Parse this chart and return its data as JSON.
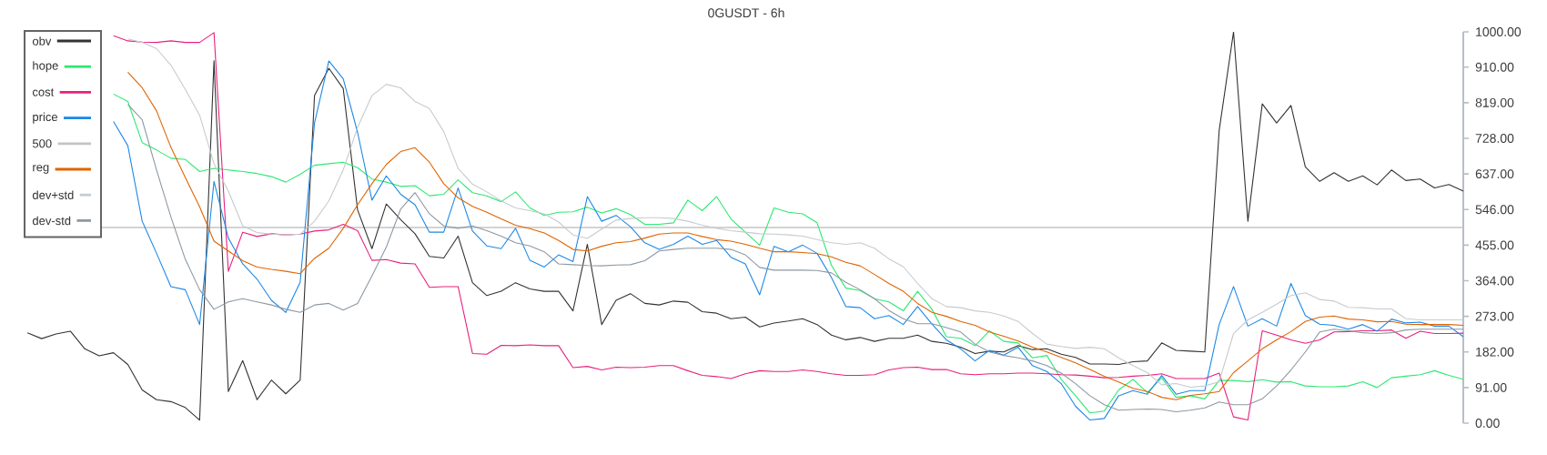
{
  "chart_data": {
    "type": "line",
    "title": "0GUSDT - 6h",
    "categories": [
      null,
      null,
      null,
      null,
      null,
      null,
      null,
      null,
      null,
      null,
      null,
      null,
      null,
      null,
      null,
      null,
      null,
      null,
      null,
      null,
      null,
      null,
      null,
      null,
      null,
      null,
      null,
      null,
      null,
      null,
      null,
      null,
      null,
      null,
      null,
      null,
      null,
      null,
      null,
      null,
      null,
      null,
      null,
      null,
      null,
      null,
      null,
      null,
      null,
      null,
      null,
      null,
      null,
      null,
      null,
      null,
      null,
      null,
      null,
      null,
      null,
      null,
      null,
      null,
      null,
      null,
      null,
      null,
      null,
      null,
      null,
      null,
      null,
      null,
      null,
      null,
      null,
      null,
      null,
      null,
      null,
      null,
      null,
      null,
      null,
      null,
      null,
      null,
      null,
      null,
      null,
      null,
      null,
      null,
      null,
      null,
      null,
      null,
      null,
      null,
      null
    ],
    "series": [
      {
        "name": "obv",
        "color": "#333333",
        "values": [
          231,
          216,
          228,
          235,
          190,
          172,
          180,
          150,
          85,
          60,
          55,
          40,
          8,
          926,
          81,
          160,
          60,
          110,
          75,
          110,
          837,
          907,
          855,
          545,
          446,
          560,
          520,
          484,
          426,
          422,
          478,
          359,
          326,
          337,
          359,
          343,
          337,
          337,
          287,
          457,
          252,
          314,
          331,
          306,
          302,
          312,
          309,
          285,
          281,
          267,
          271,
          246,
          256,
          261,
          267,
          252,
          225,
          213,
          219,
          209,
          217,
          217,
          225,
          209,
          204,
          194,
          178,
          184,
          182,
          198,
          188,
          190,
          176,
          168,
          151,
          151,
          150,
          157,
          159,
          205,
          186,
          184,
          182,
          748,
          1000,
          516,
          816,
          767,
          812,
          655,
          618,
          640,
          618,
          632,
          609,
          647,
          620,
          624,
          601,
          610,
          593
        ]
      },
      {
        "name": "hope",
        "color": "#2ee872",
        "values": [
          null,
          null,
          null,
          null,
          null,
          null,
          841,
          822,
          717,
          698,
          677,
          674,
          643,
          651,
          647,
          643,
          638,
          630,
          616,
          636,
          659,
          663,
          667,
          653,
          624,
          616,
          605,
          607,
          581,
          585,
          622,
          589,
          581,
          566,
          591,
          550,
          531,
          539,
          540,
          552,
          537,
          548,
          533,
          508,
          508,
          512,
          570,
          543,
          579,
          522,
          488,
          455,
          550,
          539,
          535,
          512,
          403,
          345,
          339,
          318,
          310,
          287,
          337,
          291,
          221,
          217,
          198,
          236,
          209,
          205,
          167,
          173,
          112,
          70,
          26,
          31,
          85,
          112,
          78,
          116,
          66,
          70,
          62,
          109,
          109,
          106,
          111,
          105,
          106,
          95,
          93,
          93,
          95,
          106,
          91,
          116,
          120,
          124,
          134,
          122,
          112
        ]
      },
      {
        "name": "cost",
        "color": "#e8207e",
        "values": [
          null,
          null,
          null,
          null,
          null,
          null,
          990,
          977,
          974,
          973,
          977,
          973,
          973,
          998,
          388,
          488,
          477,
          484,
          481,
          483,
          491,
          494,
          508,
          492,
          416,
          418,
          409,
          407,
          347,
          349,
          349,
          178,
          176,
          199,
          198,
          200,
          198,
          198,
          142,
          145,
          136,
          143,
          142,
          143,
          147,
          147,
          134,
          122,
          119,
          114,
          126,
          134,
          132,
          132,
          136,
          132,
          126,
          122,
          122,
          124,
          136,
          142,
          143,
          137,
          137,
          126,
          124,
          126,
          126,
          128,
          128,
          126,
          124,
          123,
          120,
          116,
          117,
          120,
          122,
          126,
          114,
          114,
          114,
          128,
          16,
          8,
          236,
          225,
          213,
          204,
          213,
          233,
          234,
          236,
          236,
          238,
          217,
          235,
          229,
          229,
          230
        ]
      },
      {
        "name": "price",
        "color": "#1e88e5",
        "values": [
          null,
          null,
          null,
          null,
          null,
          null,
          771,
          709,
          516,
          434,
          349,
          341,
          252,
          618,
          473,
          407,
          368,
          314,
          283,
          360,
          767,
          926,
          880,
          743,
          570,
          632,
          585,
          558,
          488,
          488,
          601,
          491,
          453,
          446,
          498,
          416,
          399,
          430,
          413,
          579,
          516,
          531,
          502,
          461,
          444,
          457,
          478,
          457,
          467,
          424,
          407,
          328,
          452,
          438,
          455,
          434,
          372,
          298,
          295,
          267,
          275,
          252,
          298,
          253,
          213,
          190,
          159,
          186,
          174,
          194,
          147,
          132,
          101,
          43,
          8,
          12,
          70,
          83,
          74,
          122,
          74,
          83,
          83,
          252,
          349,
          248,
          267,
          248,
          357,
          275,
          253,
          250,
          240,
          252,
          235,
          266,
          256,
          258,
          248,
          248,
          221
        ]
      },
      {
        "name": "reg",
        "color": "#e06400",
        "values": [
          null,
          null,
          null,
          null,
          null,
          null,
          null,
          897,
          857,
          798,
          705,
          628,
          553,
          465,
          440,
          415,
          399,
          393,
          388,
          382,
          421,
          447,
          498,
          558,
          612,
          661,
          694,
          704,
          667,
          612,
          576,
          554,
          539,
          522,
          506,
          497,
          486,
          467,
          444,
          440,
          452,
          461,
          464,
          473,
          483,
          486,
          486,
          477,
          469,
          465,
          457,
          447,
          438,
          438,
          436,
          433,
          425,
          411,
          402,
          380,
          357,
          337,
          306,
          283,
          273,
          260,
          250,
          233,
          222,
          210,
          194,
          182,
          168,
          154,
          137,
          120,
          105,
          89,
          81,
          66,
          60,
          71,
          75,
          81,
          129,
          159,
          190,
          213,
          234,
          260,
          271,
          274,
          266,
          264,
          259,
          260,
          253,
          252,
          252,
          252,
          250
        ]
      },
      {
        "name": "dev+std",
        "color": "#c6cbd1",
        "values": [
          null,
          null,
          null,
          null,
          null,
          null,
          null,
          982,
          973,
          957,
          915,
          853,
          787,
          663,
          593,
          504,
          487,
          483,
          481,
          483,
          516,
          568,
          647,
          756,
          837,
          866,
          857,
          822,
          804,
          745,
          651,
          611,
          591,
          568,
          550,
          543,
          535,
          514,
          481,
          472,
          496,
          519,
          523,
          525,
          525,
          523,
          516,
          506,
          498,
          492,
          488,
          484,
          483,
          481,
          478,
          469,
          461,
          457,
          461,
          447,
          420,
          400,
          357,
          318,
          298,
          295,
          287,
          283,
          274,
          260,
          229,
          202,
          196,
          191,
          194,
          190,
          167,
          147,
          129,
          98,
          101,
          92,
          95,
          106,
          229,
          264,
          283,
          304,
          326,
          333,
          316,
          312,
          296,
          295,
          292,
          292,
          267,
          264,
          264,
          264,
          264
        ]
      },
      {
        "name": "dev-std",
        "color": "#8e98a2",
        "values": [
          null,
          null,
          null,
          null,
          null,
          null,
          null,
          814,
          775,
          647,
          527,
          419,
          341,
          291,
          310,
          318,
          310,
          302,
          291,
          283,
          302,
          306,
          289,
          306,
          376,
          450,
          547,
          589,
          535,
          504,
          498,
          504,
          492,
          478,
          461,
          453,
          438,
          407,
          405,
          403,
          402,
          404,
          405,
          415,
          440,
          444,
          447,
          447,
          447,
          444,
          430,
          398,
          391,
          391,
          391,
          390,
          384,
          360,
          341,
          318,
          288,
          267,
          254,
          254,
          244,
          233,
          202,
          182,
          173,
          167,
          159,
          147,
          128,
          101,
          70,
          47,
          33,
          35,
          36,
          35,
          29,
          33,
          39,
          54,
          47,
          47,
          62,
          95,
          136,
          182,
          233,
          240,
          236,
          231,
          229,
          231,
          238,
          240,
          240,
          240,
          240
        ]
      }
    ],
    "ref_lines": [
      {
        "axis": "y",
        "value": 500,
        "label": "500",
        "color": "#c4c4c4"
      }
    ],
    "ylim": [
      0,
      1000
    ],
    "yticks": [
      {
        "value": 0,
        "label": "0.00"
      },
      {
        "value": 91,
        "label": "91.00"
      },
      {
        "value": 182,
        "label": "182.00"
      },
      {
        "value": 273,
        "label": "273.00"
      },
      {
        "value": 364,
        "label": "364.00"
      },
      {
        "value": 455,
        "label": "455.00"
      },
      {
        "value": 546,
        "label": "546.00"
      },
      {
        "value": 637,
        "label": "637.00"
      },
      {
        "value": 728,
        "label": "728.00"
      },
      {
        "value": 819,
        "label": "819.00"
      },
      {
        "value": 910,
        "label": "910.00"
      },
      {
        "value": 1000,
        "label": "1000.00"
      }
    ],
    "tick_labels": "y",
    "legend": "top left"
  }
}
